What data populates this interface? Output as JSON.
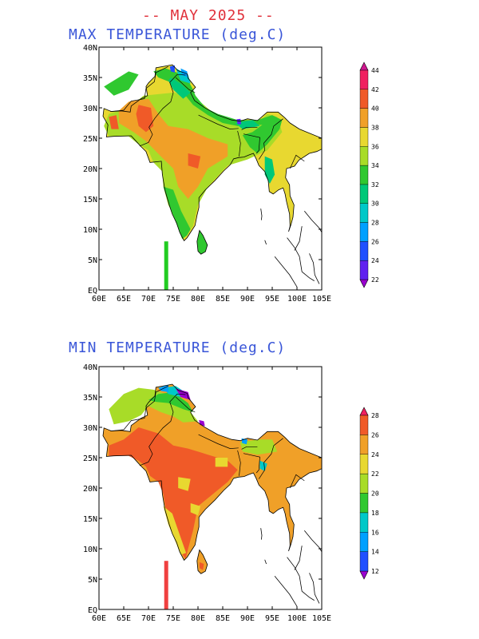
{
  "header": {
    "title": "-- MAY 2025 --"
  },
  "panels": [
    {
      "title": "MAX TEMPERATURE (deg.C)",
      "marker_color": "#22cc22",
      "colorbar": {
        "labels": [
          "22",
          "24",
          "26",
          "28",
          "30",
          "32",
          "34",
          "36",
          "38",
          "40",
          "42",
          "44"
        ],
        "colors": [
          "#9a00d0",
          "#6020f0",
          "#2050ff",
          "#00a0ff",
          "#00c8c8",
          "#00c878",
          "#30c830",
          "#a8dc28",
          "#e8d830",
          "#f0a028",
          "#f05a28",
          "#f02060",
          "#d01890"
        ]
      }
    },
    {
      "title": "MIN TEMPERATURE (deg.C)",
      "marker_color": "#f04040",
      "colorbar": {
        "labels": [
          "12",
          "14",
          "16",
          "18",
          "20",
          "22",
          "24",
          "26",
          "28"
        ],
        "colors": [
          "#9a00d0",
          "#2050ff",
          "#00a0ff",
          "#00c8c8",
          "#30c830",
          "#a8dc28",
          "#e8d830",
          "#f0a028",
          "#f05a28",
          "#f02060"
        ]
      }
    }
  ],
  "map_axes": {
    "lon_labels": [
      "60E",
      "65E",
      "70E",
      "75E",
      "80E",
      "85E",
      "90E",
      "95E",
      "100E",
      "105E"
    ],
    "lat_labels": [
      "EQ",
      "5N",
      "10N",
      "15N",
      "20N",
      "25N",
      "30N",
      "35N",
      "40N"
    ],
    "lon_range": [
      60,
      105
    ],
    "lat_range": [
      0,
      40
    ]
  }
}
